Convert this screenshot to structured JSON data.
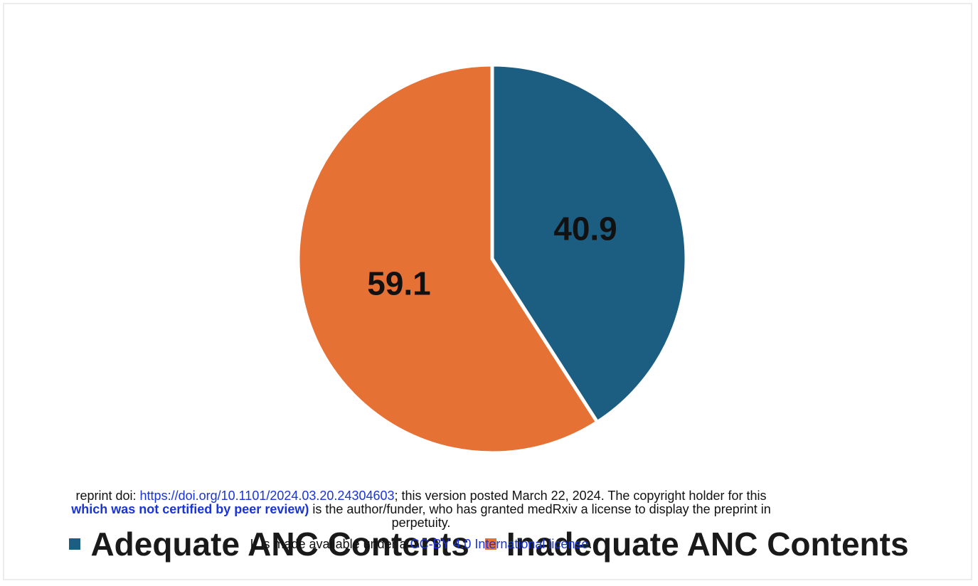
{
  "chart_data": {
    "type": "pie",
    "title": "",
    "slices": [
      {
        "name": "Adequate ANC Contents",
        "value": 40.9,
        "label": "40.9",
        "color": "#1b5e82"
      },
      {
        "name": "Inadequate ANC Contents",
        "value": 59.1,
        "label": "59.1",
        "color": "#e67135"
      }
    ],
    "legend_position": "bottom",
    "start": "12 o'clock, clockwise"
  },
  "notice": {
    "line1_prefix": "reprint doi: ",
    "doi_link": "https://doi.org/10.1101/2024.03.20.24304603",
    "line1_suffix": "; this version posted March 22, 2024. The copyright holder for this",
    "line2_bold": "which was not certified by peer review)",
    "line2_rest": " is the author/funder, who has granted medRxiv a license to display the preprint in",
    "line3": "perpetuity.",
    "line4_prefix": "It is made available under a ",
    "license_link": "CC-BY 4.0 International license",
    "line4_suffix": "."
  }
}
